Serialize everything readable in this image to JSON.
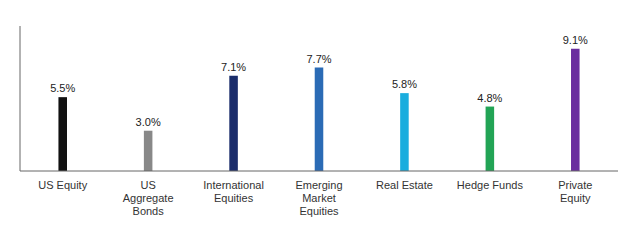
{
  "chart_data": {
    "type": "bar",
    "categories": [
      "US Equity",
      "US\nAggregate\nBonds",
      "International\nEquities",
      "Emerging\nMarket\nEquities",
      "Real Estate",
      "Hedge Funds",
      "Private\nEquity"
    ],
    "values": [
      5.5,
      3.0,
      7.1,
      7.7,
      5.8,
      4.8,
      9.1
    ],
    "value_labels": [
      "5.5%",
      "3.0%",
      "7.1%",
      "7.7%",
      "5.8%",
      "4.8%",
      "9.1%"
    ],
    "data_labels": true,
    "colors": [
      "#111111",
      "#888888",
      "#1b2d6b",
      "#2b6bb5",
      "#1aadde",
      "#22a455",
      "#6a2d9f"
    ],
    "ylim": [
      0,
      10.8
    ],
    "grid": false,
    "tick_labels": "x"
  }
}
